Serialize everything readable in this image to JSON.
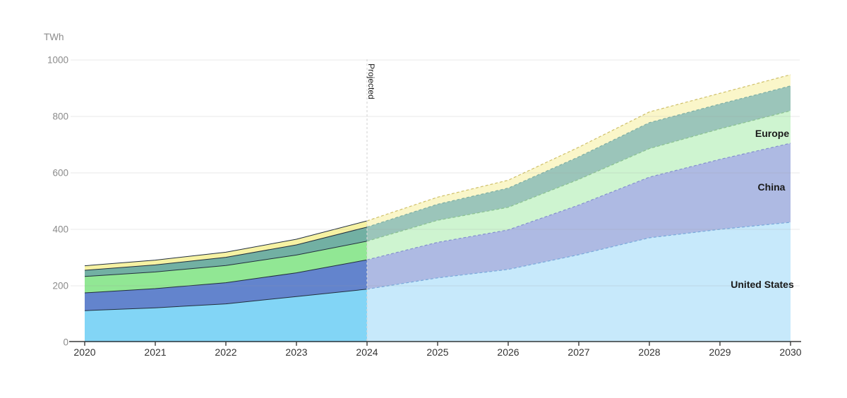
{
  "page": {
    "background": "#ffffff"
  },
  "chart_data": {
    "type": "area",
    "stacked": true,
    "title": "",
    "unit_label": "TWh",
    "xlabel": "",
    "ylabel": "TWh",
    "x": [
      2020,
      2021,
      2022,
      2023,
      2024,
      2025,
      2026,
      2027,
      2028,
      2029,
      2030
    ],
    "x_tick_labels": [
      "2020",
      "2021",
      "2022",
      "2023",
      "2024",
      "2025",
      "2026",
      "2027",
      "2028",
      "2029",
      "2030"
    ],
    "ylim": [
      0,
      1000
    ],
    "y_ticks": [
      0,
      200,
      400,
      600,
      800,
      1000
    ],
    "y_tick_labels": [
      "0",
      "200",
      "400",
      "600",
      "800",
      "1000"
    ],
    "grid": true,
    "legend_position": "inline-right",
    "projection": {
      "divider_year": 2024,
      "label": "Projected"
    },
    "series": [
      {
        "name": "united-states",
        "label": "United States",
        "values": [
          112,
          122,
          136,
          162,
          188,
          228,
          258,
          310,
          370,
          400,
          425
        ],
        "fill_historical": "#82D5F6",
        "fill_projected": "#C7E9FB",
        "stroke_projected": "#79A9DB"
      },
      {
        "name": "china",
        "label": "China",
        "values": [
          63,
          68,
          75,
          84,
          104,
          126,
          140,
          176,
          215,
          248,
          280
        ],
        "fill_historical": "#6384CD",
        "fill_projected": "#AEBAE3",
        "stroke_projected": "#8490CE"
      },
      {
        "name": "europe",
        "label": "Europe",
        "values": [
          58,
          59,
          61,
          63,
          66,
          78,
          80,
          91,
          101,
          108,
          115
        ],
        "fill_historical": "#91E794",
        "fill_projected": "#CEF4D0",
        "stroke_projected": "#8BC390"
      },
      {
        "name": "unlabeled-band-teal",
        "label": "",
        "values": [
          22,
          25,
          29,
          36,
          50,
          57,
          68,
          80,
          92,
          88,
          88
        ],
        "fill_historical": "#72B0A3",
        "fill_projected": "#9BC5BA",
        "stroke_projected": "#7FAFA3"
      },
      {
        "name": "unlabeled-band-yellow",
        "label": "",
        "values": [
          16,
          17,
          18,
          20,
          22,
          25,
          28,
          34,
          38,
          38,
          40
        ],
        "fill_historical": "#F6F2A3",
        "fill_projected": "#FAF6C9",
        "stroke_projected": "#CFC06A"
      }
    ],
    "inline_labels": [
      {
        "text": "Europe",
        "x": 1094,
        "y": 194
      },
      {
        "text": "China",
        "x": 1093,
        "y": 270
      },
      {
        "text": "United States",
        "x": 1080,
        "y": 408
      }
    ],
    "style": {
      "grid_color": "#9a9a9a",
      "grid_opacity": 0.22,
      "axis_color": "#3a3a3a",
      "tick_label_color": "#333333",
      "y_label_color": "#8b8b8b",
      "historical_stroke": "#222F3E",
      "divider_color": "#d8d8d8",
      "inline_label_color": "#1a1a1a",
      "projected_label_color": "#222222"
    }
  }
}
